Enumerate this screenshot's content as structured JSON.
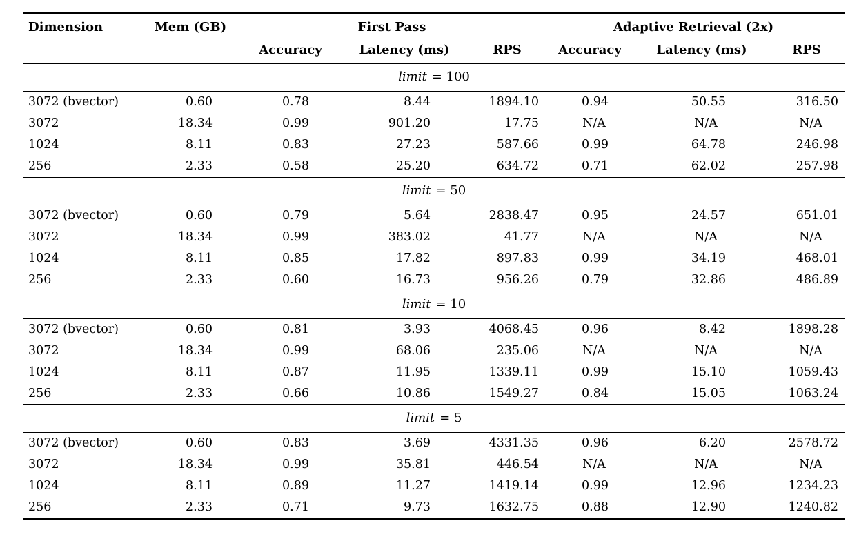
{
  "table": {
    "col_dimension": "Dimension",
    "col_mem": "Mem (GB)",
    "groups": [
      {
        "label": "First Pass",
        "cols": [
          "Accuracy",
          "Latency (ms)",
          "RPS"
        ]
      },
      {
        "label": "Adaptive Retrieval (2x)",
        "cols": [
          "Accuracy",
          "Latency (ms)",
          "RPS"
        ]
      }
    ],
    "sections": [
      {
        "limit_var": "limit",
        "limit_eq": "= 100",
        "rows": [
          [
            "3072 (bvector)",
            "0.60",
            "0.78",
            "8.44",
            "1894.10",
            "0.94",
            "50.55",
            "316.50"
          ],
          [
            "3072",
            "18.34",
            "0.99",
            "901.20",
            "17.75",
            "N/A",
            "N/A",
            "N/A"
          ],
          [
            "1024",
            "8.11",
            "0.83",
            "27.23",
            "587.66",
            "0.99",
            "64.78",
            "246.98"
          ],
          [
            "256",
            "2.33",
            "0.58",
            "25.20",
            "634.72",
            "0.71",
            "62.02",
            "257.98"
          ]
        ]
      },
      {
        "limit_var": "limit",
        "limit_eq": "= 50",
        "rows": [
          [
            "3072 (bvector)",
            "0.60",
            "0.79",
            "5.64",
            "2838.47",
            "0.95",
            "24.57",
            "651.01"
          ],
          [
            "3072",
            "18.34",
            "0.99",
            "383.02",
            "41.77",
            "N/A",
            "N/A",
            "N/A"
          ],
          [
            "1024",
            "8.11",
            "0.85",
            "17.82",
            "897.83",
            "0.99",
            "34.19",
            "468.01"
          ],
          [
            "256",
            "2.33",
            "0.60",
            "16.73",
            "956.26",
            "0.79",
            "32.86",
            "486.89"
          ]
        ]
      },
      {
        "limit_var": "limit",
        "limit_eq": "= 10",
        "rows": [
          [
            "3072 (bvector)",
            "0.60",
            "0.81",
            "3.93",
            "4068.45",
            "0.96",
            "8.42",
            "1898.28"
          ],
          [
            "3072",
            "18.34",
            "0.99",
            "68.06",
            "235.06",
            "N/A",
            "N/A",
            "N/A"
          ],
          [
            "1024",
            "8.11",
            "0.87",
            "11.95",
            "1339.11",
            "0.99",
            "15.10",
            "1059.43"
          ],
          [
            "256",
            "2.33",
            "0.66",
            "10.86",
            "1549.27",
            "0.84",
            "15.05",
            "1063.24"
          ]
        ]
      },
      {
        "limit_var": "limit",
        "limit_eq": "= 5",
        "rows": [
          [
            "3072 (bvector)",
            "0.60",
            "0.83",
            "3.69",
            "4331.35",
            "0.96",
            "6.20",
            "2578.72"
          ],
          [
            "3072",
            "18.34",
            "0.99",
            "35.81",
            "446.54",
            "N/A",
            "N/A",
            "N/A"
          ],
          [
            "1024",
            "8.11",
            "0.89",
            "11.27",
            "1419.14",
            "0.99",
            "12.96",
            "1234.23"
          ],
          [
            "256",
            "2.33",
            "0.71",
            "9.73",
            "1632.75",
            "0.88",
            "12.90",
            "1240.82"
          ]
        ]
      }
    ]
  }
}
